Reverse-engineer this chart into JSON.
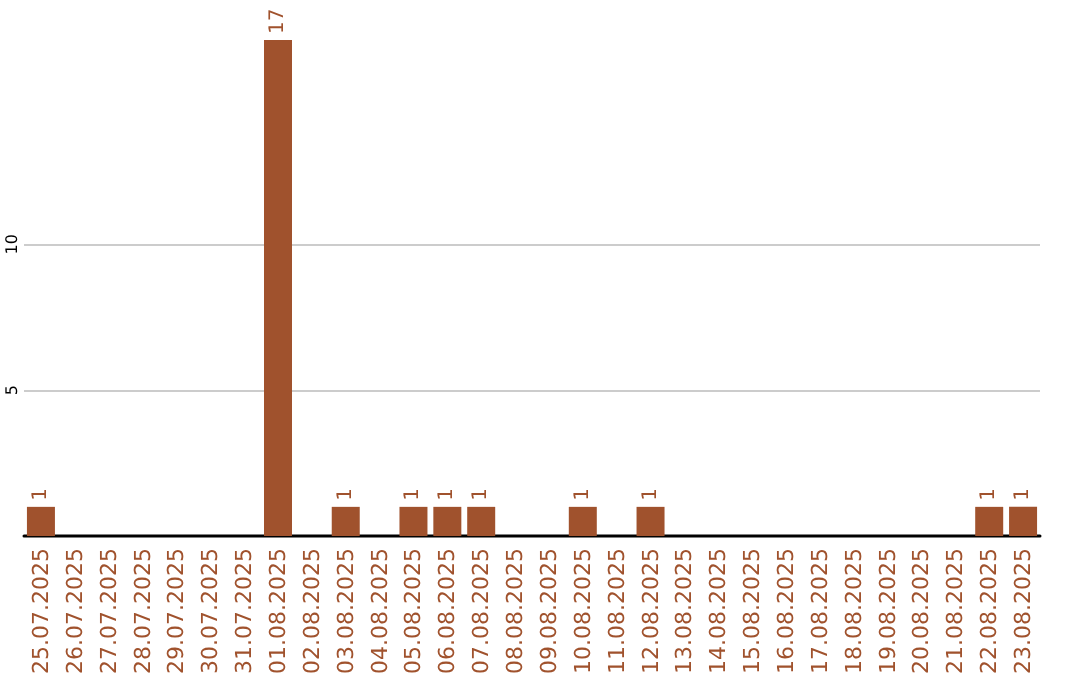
{
  "chart_data": {
    "type": "bar",
    "categories": [
      "25.07.2025",
      "26.07.2025",
      "27.07.2025",
      "28.07.2025",
      "29.07.2025",
      "30.07.2025",
      "31.07.2025",
      "01.08.2025",
      "02.08.2025",
      "03.08.2025",
      "04.08.2025",
      "05.08.2025",
      "06.08.2025",
      "07.08.2025",
      "08.08.2025",
      "09.08.2025",
      "10.08.2025",
      "11.08.2025",
      "12.08.2025",
      "13.08.2025",
      "14.08.2025",
      "15.08.2025",
      "16.08.2025",
      "17.08.2025",
      "18.08.2025",
      "19.08.2025",
      "20.08.2025",
      "21.08.2025",
      "22.08.2025",
      "23.08.2025"
    ],
    "values": [
      1,
      null,
      null,
      null,
      null,
      null,
      null,
      17,
      null,
      1,
      null,
      1,
      1,
      1,
      null,
      null,
      1,
      null,
      1,
      null,
      null,
      null,
      null,
      null,
      null,
      null,
      null,
      null,
      1,
      1
    ],
    "color": "#a0522d",
    "ylim": [
      0,
      17
    ],
    "yticks": [
      5,
      10
    ],
    "grid": "y",
    "data_labels": true
  }
}
